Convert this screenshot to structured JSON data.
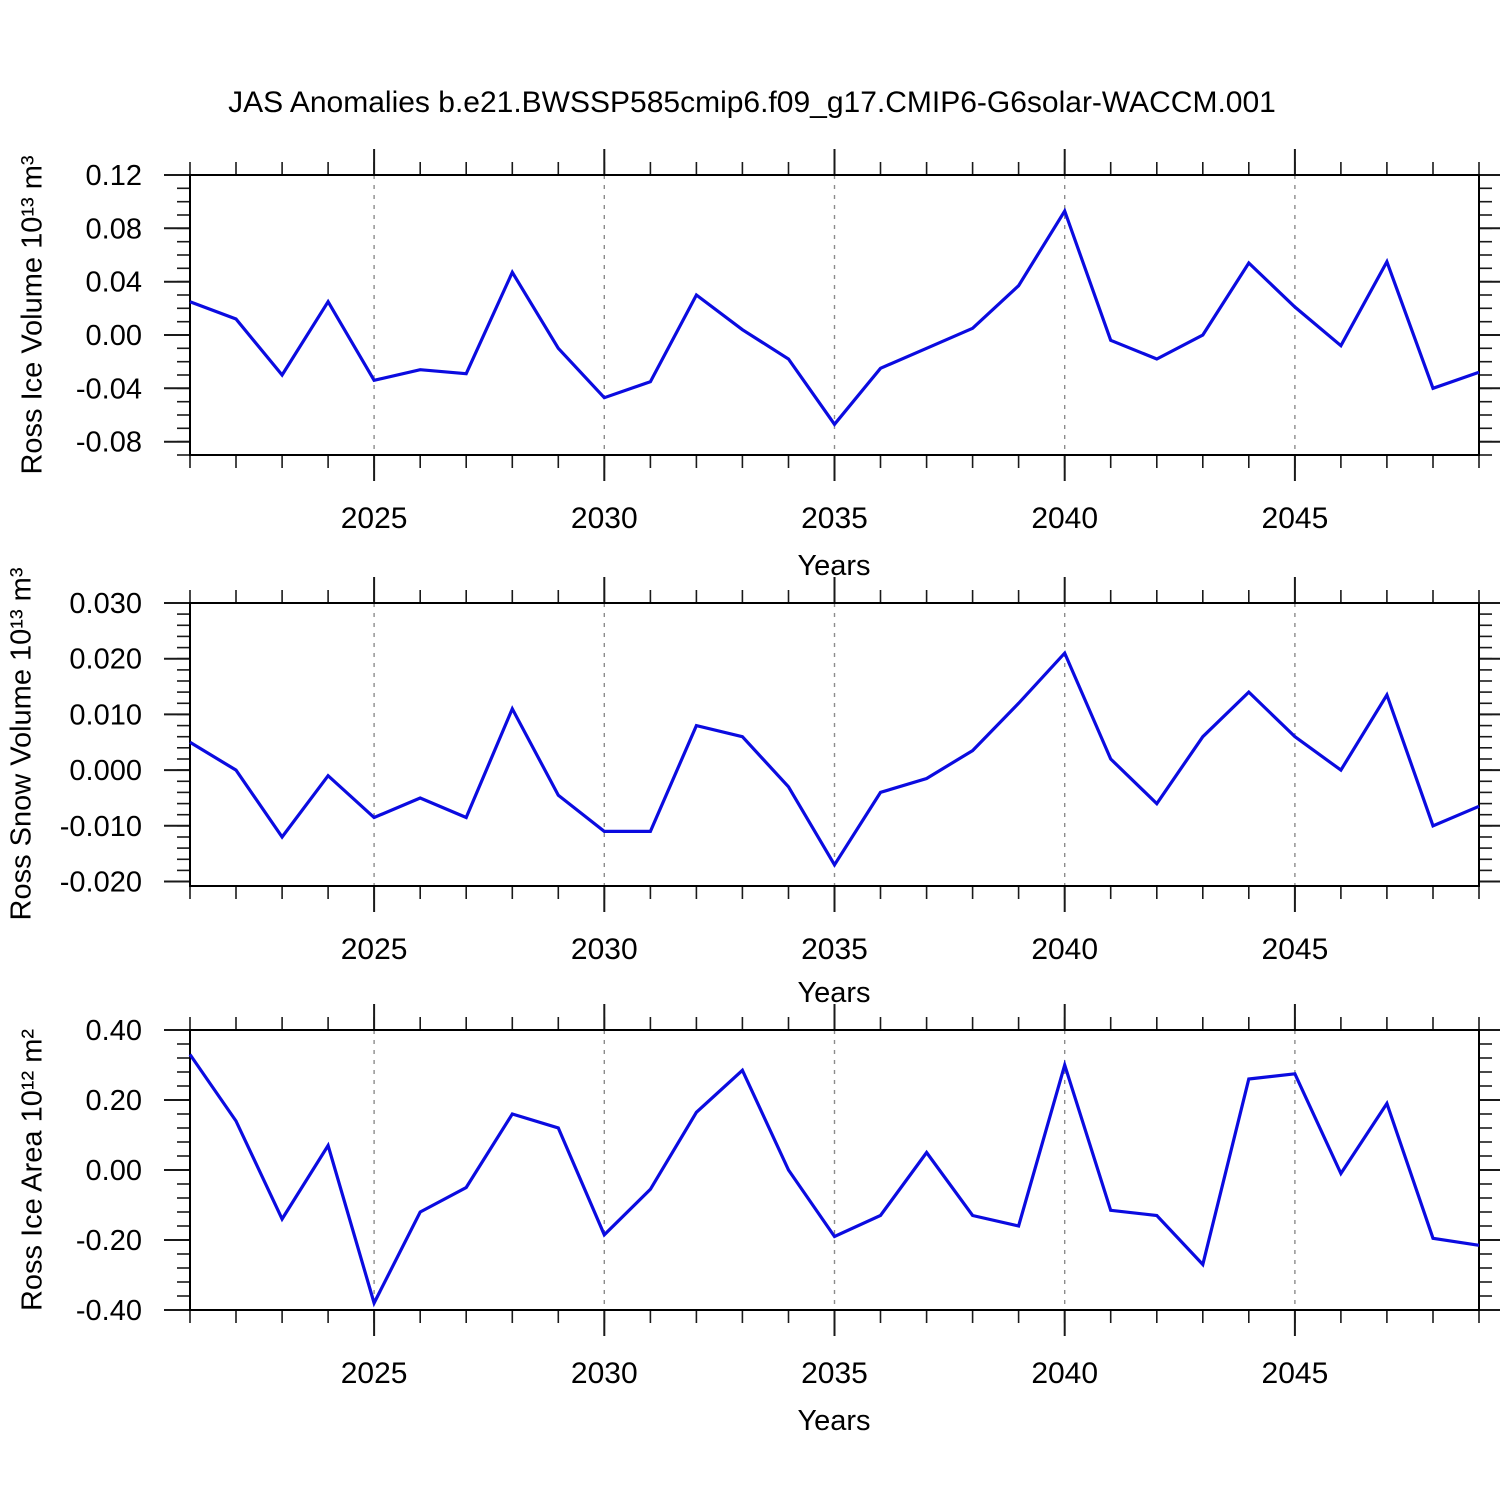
{
  "title": "JAS Anomalies b.e21.BWSSP585cmip6.f09_g17.CMIP6-G6solar-WACCM.001",
  "style": {
    "line_color": "#0b0be0",
    "grid_color": "#8c8c8c",
    "frame_color": "#000000",
    "tick_color": "#1a1a1a",
    "text_color": "#000000",
    "background": "#ffffff"
  },
  "chart_data": [
    {
      "type": "line",
      "name": "ross-ice-volume",
      "title": "",
      "ylabel": "Ross Ice Volume 10¹³ m³",
      "xlabel": "Years",
      "legend": "none",
      "grid": "vertical-dashed-at-major-xticks",
      "xlim": [
        2021,
        2049
      ],
      "ylim": [
        -0.09,
        0.12
      ],
      "xticks": {
        "values": [
          2025,
          2030,
          2035,
          2040,
          2045
        ],
        "labels": [
          "2025",
          "2030",
          "2035",
          "2040",
          "2045"
        ]
      },
      "xminor_step": 1,
      "yticks": {
        "values": [
          0.12,
          0.08,
          0.04,
          0.0,
          -0.04,
          -0.08
        ],
        "labels": [
          "0.12",
          "0.08",
          "0.04",
          "0.00",
          "-0.04",
          "-0.08"
        ]
      },
      "yminor_step": 0.01,
      "x": [
        2021,
        2022,
        2023,
        2024,
        2025,
        2026,
        2027,
        2028,
        2029,
        2030,
        2031,
        2032,
        2033,
        2034,
        2035,
        2036,
        2037,
        2038,
        2039,
        2040,
        2041,
        2042,
        2043,
        2044,
        2045,
        2046,
        2047,
        2048,
        2049
      ],
      "values": [
        0.025,
        0.012,
        -0.03,
        0.025,
        -0.034,
        -0.026,
        -0.029,
        0.047,
        -0.01,
        -0.047,
        -0.035,
        0.03,
        0.004,
        -0.018,
        -0.067,
        -0.025,
        -0.01,
        0.005,
        0.037,
        0.093,
        -0.004,
        -0.018,
        0.0,
        0.054,
        0.021,
        -0.008,
        0.055,
        -0.04,
        -0.028
      ]
    },
    {
      "type": "line",
      "name": "ross-snow-volume",
      "title": "",
      "ylabel": "Ross Snow Volume 10¹³ m³",
      "xlabel": "Years",
      "legend": "none",
      "grid": "vertical-dashed-at-major-xticks",
      "xlim": [
        2021,
        2049
      ],
      "ylim": [
        -0.0208,
        0.03
      ],
      "xticks": {
        "values": [
          2025,
          2030,
          2035,
          2040,
          2045
        ],
        "labels": [
          "2025",
          "2030",
          "2035",
          "2040",
          "2045"
        ]
      },
      "xminor_step": 1,
      "yticks": {
        "values": [
          0.03,
          0.02,
          0.01,
          0.0,
          -0.01,
          -0.02
        ],
        "labels": [
          "0.030",
          "0.020",
          "0.010",
          "0.000",
          "-0.010",
          "-0.020"
        ]
      },
      "yminor_step": 0.002,
      "x": [
        2021,
        2022,
        2023,
        2024,
        2025,
        2026,
        2027,
        2028,
        2029,
        2030,
        2031,
        2032,
        2033,
        2034,
        2035,
        2036,
        2037,
        2038,
        2039,
        2040,
        2041,
        2042,
        2043,
        2044,
        2045,
        2046,
        2047,
        2048,
        2049
      ],
      "values": [
        0.005,
        0.0,
        -0.012,
        -0.001,
        -0.0085,
        -0.005,
        -0.0085,
        0.011,
        -0.0045,
        -0.011,
        -0.011,
        0.008,
        0.006,
        -0.003,
        -0.017,
        -0.004,
        -0.0015,
        0.0035,
        0.012,
        0.021,
        0.002,
        -0.006,
        0.006,
        0.014,
        0.006,
        0.0,
        0.0135,
        -0.01,
        -0.0065
      ]
    },
    {
      "type": "line",
      "name": "ross-ice-area",
      "title": "",
      "ylabel": "Ross Ice Area 10¹² m²",
      "xlabel": "Years",
      "legend": "none",
      "grid": "vertical-dashed-at-major-xticks",
      "xlim": [
        2021,
        2049
      ],
      "ylim": [
        -0.4,
        0.4
      ],
      "xticks": {
        "values": [
          2025,
          2030,
          2035,
          2040,
          2045
        ],
        "labels": [
          "2025",
          "2030",
          "2035",
          "2040",
          "2045"
        ]
      },
      "xminor_step": 1,
      "yticks": {
        "values": [
          0.4,
          0.2,
          0.0,
          -0.2,
          -0.4
        ],
        "labels": [
          "0.40",
          "0.20",
          "0.00",
          "-0.20",
          "-0.40"
        ]
      },
      "yminor_step": 0.04,
      "x": [
        2021,
        2022,
        2023,
        2024,
        2025,
        2026,
        2027,
        2028,
        2029,
        2030,
        2031,
        2032,
        2033,
        2034,
        2035,
        2036,
        2037,
        2038,
        2039,
        2040,
        2041,
        2042,
        2043,
        2044,
        2045,
        2046,
        2047,
        2048,
        2049
      ],
      "values": [
        0.33,
        0.14,
        -0.14,
        0.07,
        -0.38,
        -0.12,
        -0.05,
        0.16,
        0.12,
        -0.185,
        -0.055,
        0.165,
        0.285,
        0.0,
        -0.19,
        -0.13,
        0.05,
        -0.13,
        -0.16,
        0.3,
        -0.115,
        -0.13,
        -0.27,
        0.26,
        0.275,
        -0.01,
        0.19,
        -0.195,
        -0.215
      ]
    }
  ]
}
